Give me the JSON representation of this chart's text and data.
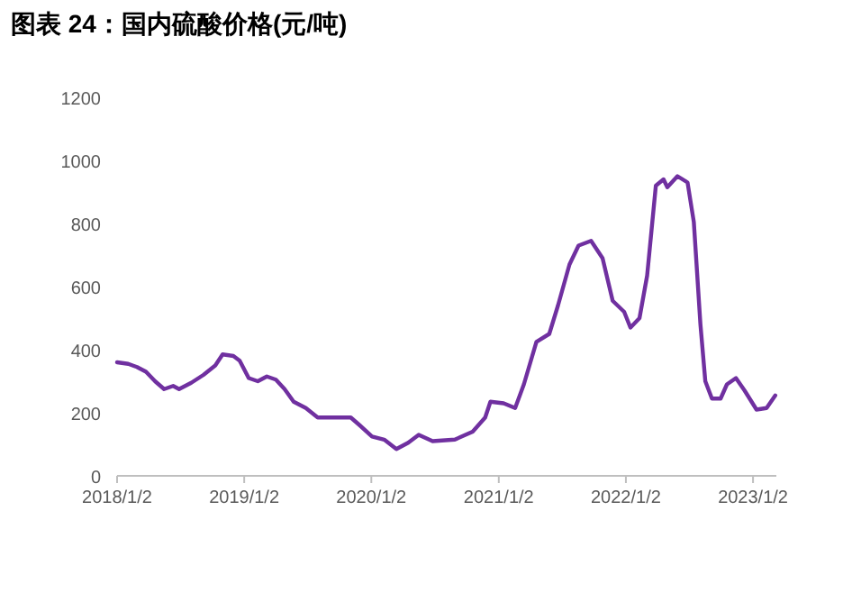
{
  "chart_data": {
    "type": "line",
    "title": "图表 24：国内硫酸价格(元/吨)",
    "series": [
      {
        "color": "#7030a0",
        "x": [
          "2018-01-02",
          "2018-02-03",
          "2018-02-28",
          "2018-03-26",
          "2018-04-21",
          "2018-05-17",
          "2018-06-12",
          "2018-06-29",
          "2018-08-03",
          "2018-09-07",
          "2018-10-11",
          "2018-11-01",
          "2018-12-02",
          "2018-12-20",
          "2019-01-15",
          "2019-02-10",
          "2019-03-08",
          "2019-04-03",
          "2019-04-28",
          "2019-05-24",
          "2019-06-28",
          "2019-08-01",
          "2019-09-22",
          "2019-11-04",
          "2019-11-30",
          "2020-01-04",
          "2020-02-08",
          "2020-03-14",
          "2020-04-17",
          "2020-05-17",
          "2020-06-26",
          "2020-08-29",
          "2020-10-19",
          "2020-11-24",
          "2020-12-09",
          "2021-01-16",
          "2021-02-18",
          "2021-03-15",
          "2021-04-20",
          "2021-05-27",
          "2021-06-21",
          "2021-07-24",
          "2021-08-19",
          "2021-09-24",
          "2021-10-27",
          "2021-11-25",
          "2021-12-28",
          "2022-01-15",
          "2022-02-10",
          "2022-03-04",
          "2022-03-29",
          "2022-04-20",
          "2022-05-01",
          "2022-05-30",
          "2022-06-28",
          "2022-07-16",
          "2022-08-04",
          "2022-08-18",
          "2022-09-06",
          "2022-10-01",
          "2022-10-19",
          "2022-11-14",
          "2022-12-09",
          "2023-01-12",
          "2023-02-10",
          "2023-03-07"
        ],
        "values": [
          360,
          355,
          345,
          330,
          300,
          275,
          285,
          275,
          295,
          320,
          350,
          385,
          380,
          365,
          310,
          300,
          315,
          305,
          275,
          235,
          215,
          185,
          185,
          185,
          160,
          125,
          115,
          85,
          105,
          130,
          110,
          115,
          140,
          185,
          235,
          230,
          215,
          290,
          425,
          450,
          540,
          670,
          730,
          745,
          690,
          555,
          520,
          470,
          500,
          635,
          920,
          940,
          915,
          950,
          930,
          805,
          480,
          300,
          245,
          245,
          290,
          310,
          270,
          210,
          215,
          255
        ]
      }
    ],
    "xlim": [
      "2018-01-02",
      "2023-03-10"
    ],
    "xticks": [
      {
        "value": "2018-01-02",
        "label": "2018/1/2"
      },
      {
        "value": "2019-01-02",
        "label": "2019/1/2"
      },
      {
        "value": "2020-01-02",
        "label": "2020/1/2"
      },
      {
        "value": "2021-01-02",
        "label": "2021/1/2"
      },
      {
        "value": "2022-01-02",
        "label": "2022/1/2"
      },
      {
        "value": "2023-01-02",
        "label": "2023/1/2"
      }
    ],
    "ylim": [
      0,
      1200
    ],
    "yticks": [
      0,
      200,
      400,
      600,
      800,
      1000,
      1200
    ],
    "grid": false,
    "marker": "none",
    "line_style": "solid"
  }
}
